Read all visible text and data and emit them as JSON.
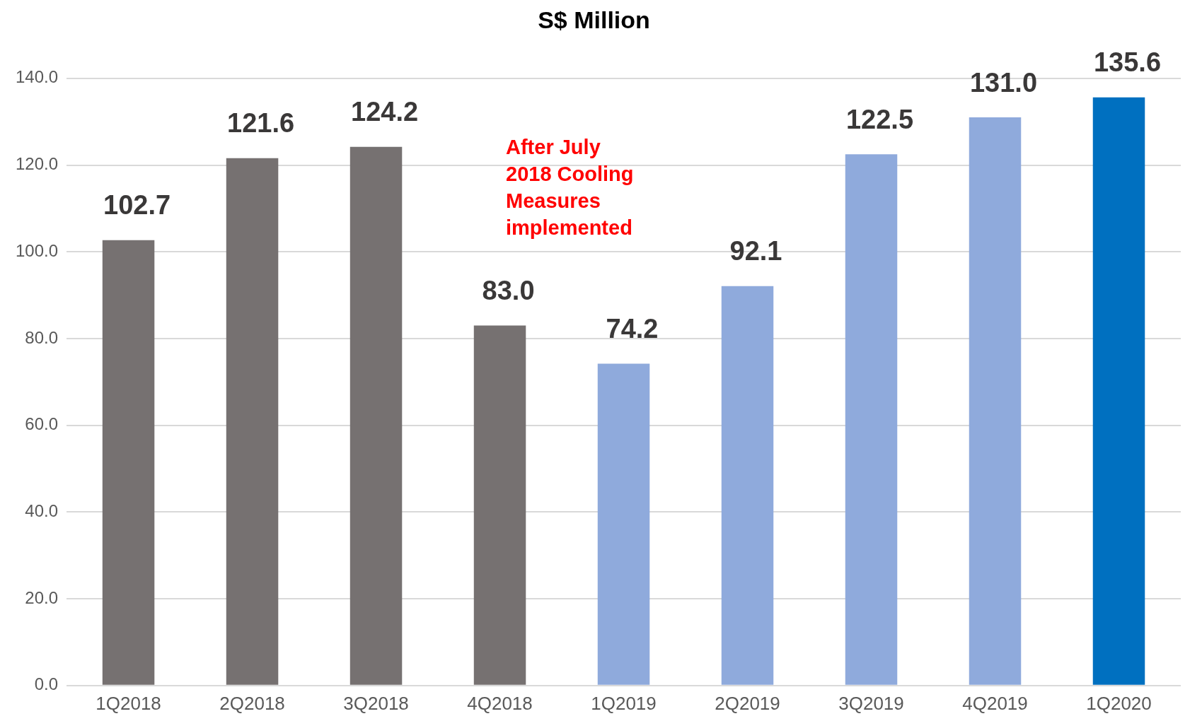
{
  "chart_data": {
    "type": "bar",
    "title": "S$ Million",
    "categories": [
      "1Q2018",
      "2Q2018",
      "3Q2018",
      "4Q2018",
      "1Q2019",
      "2Q2019",
      "3Q2019",
      "4Q2019",
      "1Q2020"
    ],
    "values": [
      102.7,
      121.6,
      124.2,
      83.0,
      74.2,
      92.1,
      122.5,
      131.0,
      135.6
    ],
    "colors": [
      "#767171",
      "#767171",
      "#767171",
      "#767171",
      "#8faadc",
      "#8faadc",
      "#8faadc",
      "#8faadc",
      "#0070c0"
    ],
    "ylim": [
      0,
      140
    ],
    "yticks": [
      {
        "value": 0,
        "label": "0.0"
      },
      {
        "value": 20,
        "label": "20.0"
      },
      {
        "value": 40,
        "label": "40.0"
      },
      {
        "value": 60,
        "label": "60.0"
      },
      {
        "value": 80,
        "label": "80.0"
      },
      {
        "value": 100,
        "label": "100.0"
      },
      {
        "value": 120,
        "label": "120.0"
      },
      {
        "value": 140,
        "label": "140.0"
      }
    ],
    "value_labels": [
      "102.7",
      "121.6",
      "124.2",
      "83.0",
      "74.2",
      "92.1",
      "122.5",
      "131.0",
      "135.6"
    ],
    "grid": "y",
    "legend": false,
    "annotations": [
      "After July 2018 Cooling Measures implemented"
    ]
  }
}
